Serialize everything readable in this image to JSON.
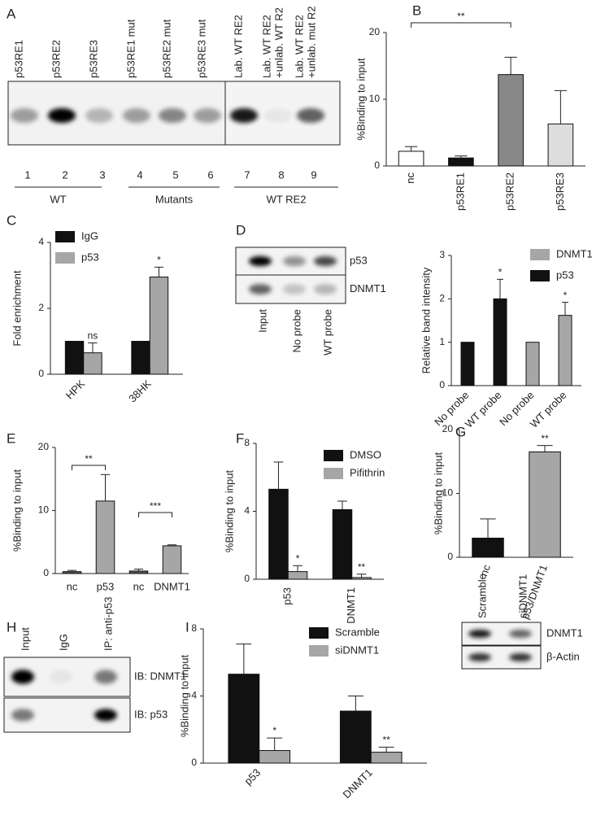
{
  "panel_labels": [
    "A",
    "B",
    "C",
    "D",
    "E",
    "F",
    "G",
    "H",
    "I"
  ],
  "blots": [
    {
      "lanes": [
        [
          "p53RE1"
        ],
        [
          "p53RE2"
        ],
        [
          "p53RE3"
        ],
        [
          "p53RE1 mut"
        ],
        [
          "p53RE2 mut"
        ],
        [
          "p53RE3 mut"
        ],
        [
          "Lab. WT RE2"
        ],
        [
          "Lab. WT RE2",
          "+unlab. WT R2"
        ],
        [
          "Lab. WT RE2",
          "+unlab. mut R2"
        ]
      ],
      "lane_numbers": [
        "1",
        "2",
        "3",
        "4",
        "5",
        "6",
        "7",
        "8",
        "9"
      ],
      "groups": [
        "WT",
        "Mutants",
        "WT RE2"
      ]
    },
    {
      "lanes": [
        "Input",
        "No probe",
        "WT probe"
      ],
      "rows": [
        "p53",
        "DNMT1"
      ]
    },
    {
      "lanes": [
        "Input",
        "IgG",
        "IP: anti-p53"
      ],
      "rows": [
        "IB: DNMT1",
        "IB: p53"
      ]
    },
    {
      "lanes": [
        "Scramble",
        "siDNMT1"
      ],
      "rows": [
        "DNMT1",
        "β-Actin"
      ]
    }
  ],
  "chart_data": [
    {
      "type": "bar",
      "y_label": "%Binding to input",
      "categories": [
        "nc",
        "p53RE1",
        "p53RE2",
        "p53RE3"
      ],
      "values": [
        2.2,
        1.2,
        13.7,
        6.3
      ],
      "errors": [
        0.7,
        0.3,
        2.6,
        5.0
      ],
      "colors": [
        "#ffffff",
        "#111111",
        "#888888",
        "#dddddd"
      ],
      "significance": [
        null,
        null,
        "**",
        null
      ],
      "ylim": [
        0,
        20
      ],
      "yticks": [
        0,
        10,
        20
      ]
    },
    {
      "type": "bar",
      "y_label": "Fold enrichment",
      "categories": [
        "HPK",
        "38HK"
      ],
      "series": [
        {
          "name": "IgG",
          "color": "#111111",
          "values": [
            1,
            1
          ],
          "errors": [
            null,
            null
          ],
          "significance": [
            null,
            null
          ]
        },
        {
          "name": "p53",
          "color": "#a6a6a6",
          "values": [
            0.65,
            2.95
          ],
          "errors": [
            0.3,
            0.3
          ],
          "significance": [
            "ns",
            "*"
          ]
        }
      ],
      "ylim": [
        0,
        4
      ],
      "yticks": [
        0,
        2,
        4
      ]
    },
    {
      "type": "bar",
      "y_label": "Relative band intensity",
      "categories": [
        "No probe",
        "WT probe",
        "No probe",
        "WT probe"
      ],
      "series": [
        {
          "name": "DNMT1",
          "color": "#a6a6a6",
          "values": [
            null,
            null,
            1,
            1.62
          ],
          "errors": [
            null,
            null,
            null,
            0.3
          ],
          "significance": [
            null,
            null,
            null,
            "*"
          ]
        },
        {
          "name": "p53",
          "color": "#111111",
          "values": [
            1,
            2.0,
            null,
            null
          ],
          "errors": [
            null,
            0.45,
            null,
            null
          ],
          "significance": [
            null,
            "*",
            null,
            null
          ]
        }
      ],
      "ylim": [
        0,
        3
      ],
      "yticks": [
        0,
        1,
        2,
        3
      ]
    },
    {
      "type": "bar",
      "y_label": "%Binding to input",
      "categories": [
        "nc",
        "p53",
        "nc",
        "DNMT1"
      ],
      "values": [
        0.3,
        11.5,
        0.4,
        4.4
      ],
      "errors": [
        0.2,
        4.2,
        0.3,
        0.15
      ],
      "colors": [
        "#555555",
        "#a6a6a6",
        "#555555",
        "#a6a6a6"
      ],
      "significance": [
        null,
        "**",
        null,
        "***"
      ],
      "ylim": [
        0,
        20
      ],
      "yticks": [
        0,
        10,
        20
      ]
    },
    {
      "type": "bar",
      "y_label": "%Binding to input",
      "categories": [
        "p53",
        "DNMT1"
      ],
      "series": [
        {
          "name": "DMSO",
          "color": "#111111",
          "values": [
            5.3,
            4.1
          ],
          "errors": [
            1.6,
            0.5
          ],
          "significance": [
            null,
            null
          ]
        },
        {
          "name": "Pifithrin",
          "color": "#a6a6a6",
          "values": [
            0.45,
            0.1
          ],
          "errors": [
            0.35,
            0.2
          ],
          "significance": [
            "*",
            "**"
          ]
        }
      ],
      "ylim": [
        0,
        8
      ],
      "yticks": [
        0,
        4,
        8
      ]
    },
    {
      "type": "bar",
      "y_label": "%Binding to input",
      "categories": [
        "nc",
        "p53/DNMT1"
      ],
      "values": [
        3.0,
        16.5
      ],
      "errors": [
        3.0,
        1.0
      ],
      "colors": [
        "#111111",
        "#a6a6a6"
      ],
      "significance": [
        null,
        "**"
      ],
      "ylim": [
        0,
        20
      ],
      "yticks": [
        0,
        10,
        20
      ]
    },
    {
      "type": "bar",
      "y_label": "%Binding to input",
      "categories": [
        "p53",
        "DNMT1"
      ],
      "series": [
        {
          "name": "Scramble",
          "color": "#111111",
          "values": [
            5.3,
            3.1
          ],
          "errors": [
            1.8,
            0.9
          ],
          "significance": [
            null,
            null
          ]
        },
        {
          "name": "siDNMT1",
          "color": "#a6a6a6",
          "values": [
            0.75,
            0.65
          ],
          "errors": [
            0.75,
            0.3
          ],
          "significance": [
            "*",
            "**"
          ]
        }
      ],
      "ylim": [
        0,
        8
      ],
      "yticks": [
        0,
        4,
        8
      ]
    }
  ]
}
